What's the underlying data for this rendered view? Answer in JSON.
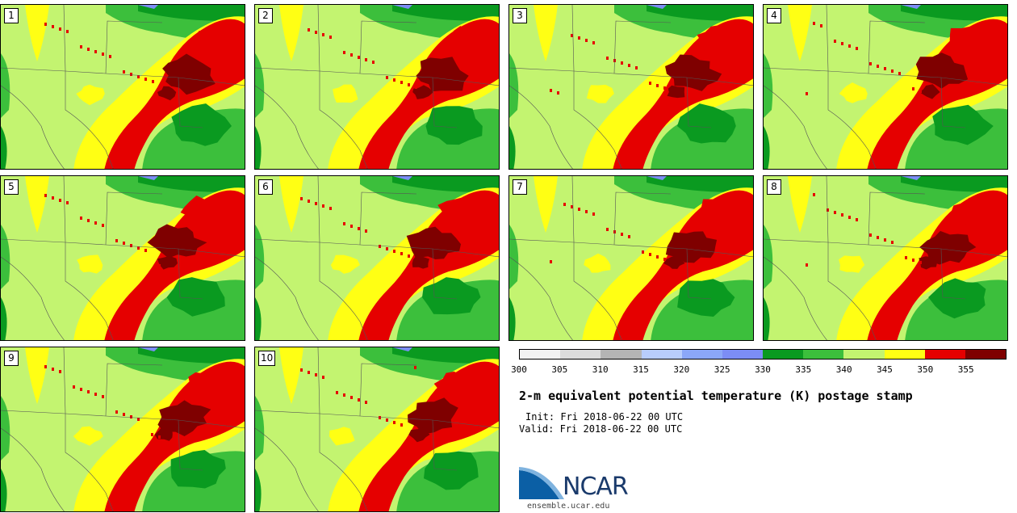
{
  "panels": [
    {
      "label": "1"
    },
    {
      "label": "2"
    },
    {
      "label": "3"
    },
    {
      "label": "4"
    },
    {
      "label": "5"
    },
    {
      "label": "6"
    },
    {
      "label": "7"
    },
    {
      "label": "8"
    },
    {
      "label": "9"
    },
    {
      "label": "10"
    }
  ],
  "colorbar": {
    "colors": [
      "#f2f2f2",
      "#dcdcdc",
      "#b4b4b4",
      "#b8cdfc",
      "#8ba7f8",
      "#7c8df5",
      "#0a9a20",
      "#3cbf3c",
      "#c3f470",
      "#ffff14",
      "#e50000",
      "#7f0000"
    ],
    "tick_labels": [
      "300",
      "305",
      "310",
      "315",
      "320",
      "325",
      "330",
      "335",
      "340",
      "345",
      "350",
      "355"
    ],
    "levels": [
      300,
      305,
      310,
      315,
      320,
      325,
      330,
      335,
      340,
      345,
      350,
      355,
      360
    ]
  },
  "title": "2-m equivalent potential temperature (K) postage stamp",
  "init": "Init: Fri 2018-06-22 00 UTC",
  "valid": "Valid: Fri 2018-06-22 00 UTC",
  "logo": {
    "text": "NCAR",
    "url": "ensemble.ucar.edu"
  }
}
